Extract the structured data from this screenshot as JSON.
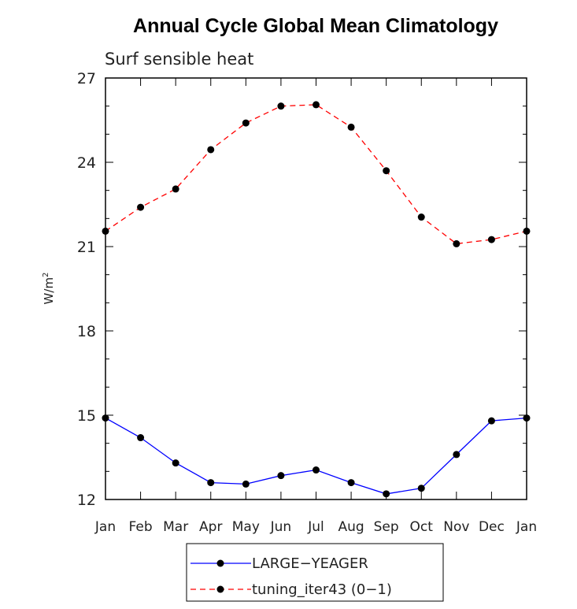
{
  "chart_data": {
    "type": "line",
    "title": "Annual Cycle Global Mean Climatology",
    "subtitle": "Surf sensible heat",
    "xlabel": "",
    "ylabel": "W/m",
    "ylabel_superscript": "2",
    "ylim": [
      12,
      27
    ],
    "yticks": [
      12,
      15,
      18,
      21,
      24,
      27
    ],
    "categories": [
      "Jan",
      "Feb",
      "Mar",
      "Apr",
      "May",
      "Jun",
      "Jul",
      "Aug",
      "Sep",
      "Oct",
      "Nov",
      "Dec",
      "Jan"
    ],
    "series": [
      {
        "name": "LARGE−YEAGER",
        "color": "#0000ff",
        "style": "solid",
        "marker": "dot",
        "values": [
          14.9,
          14.2,
          13.3,
          12.6,
          12.55,
          12.85,
          13.05,
          12.6,
          12.2,
          12.4,
          13.6,
          14.8,
          14.9
        ]
      },
      {
        "name": "tuning_iter43 (0−1)",
        "color": "#ff0000",
        "style": "dashed",
        "marker": "dot",
        "values": [
          21.55,
          22.4,
          23.05,
          24.45,
          25.4,
          26.0,
          26.05,
          25.25,
          23.7,
          22.05,
          21.1,
          21.25,
          21.55
        ]
      }
    ],
    "legend_position": "bottom-center",
    "grid": false
  }
}
